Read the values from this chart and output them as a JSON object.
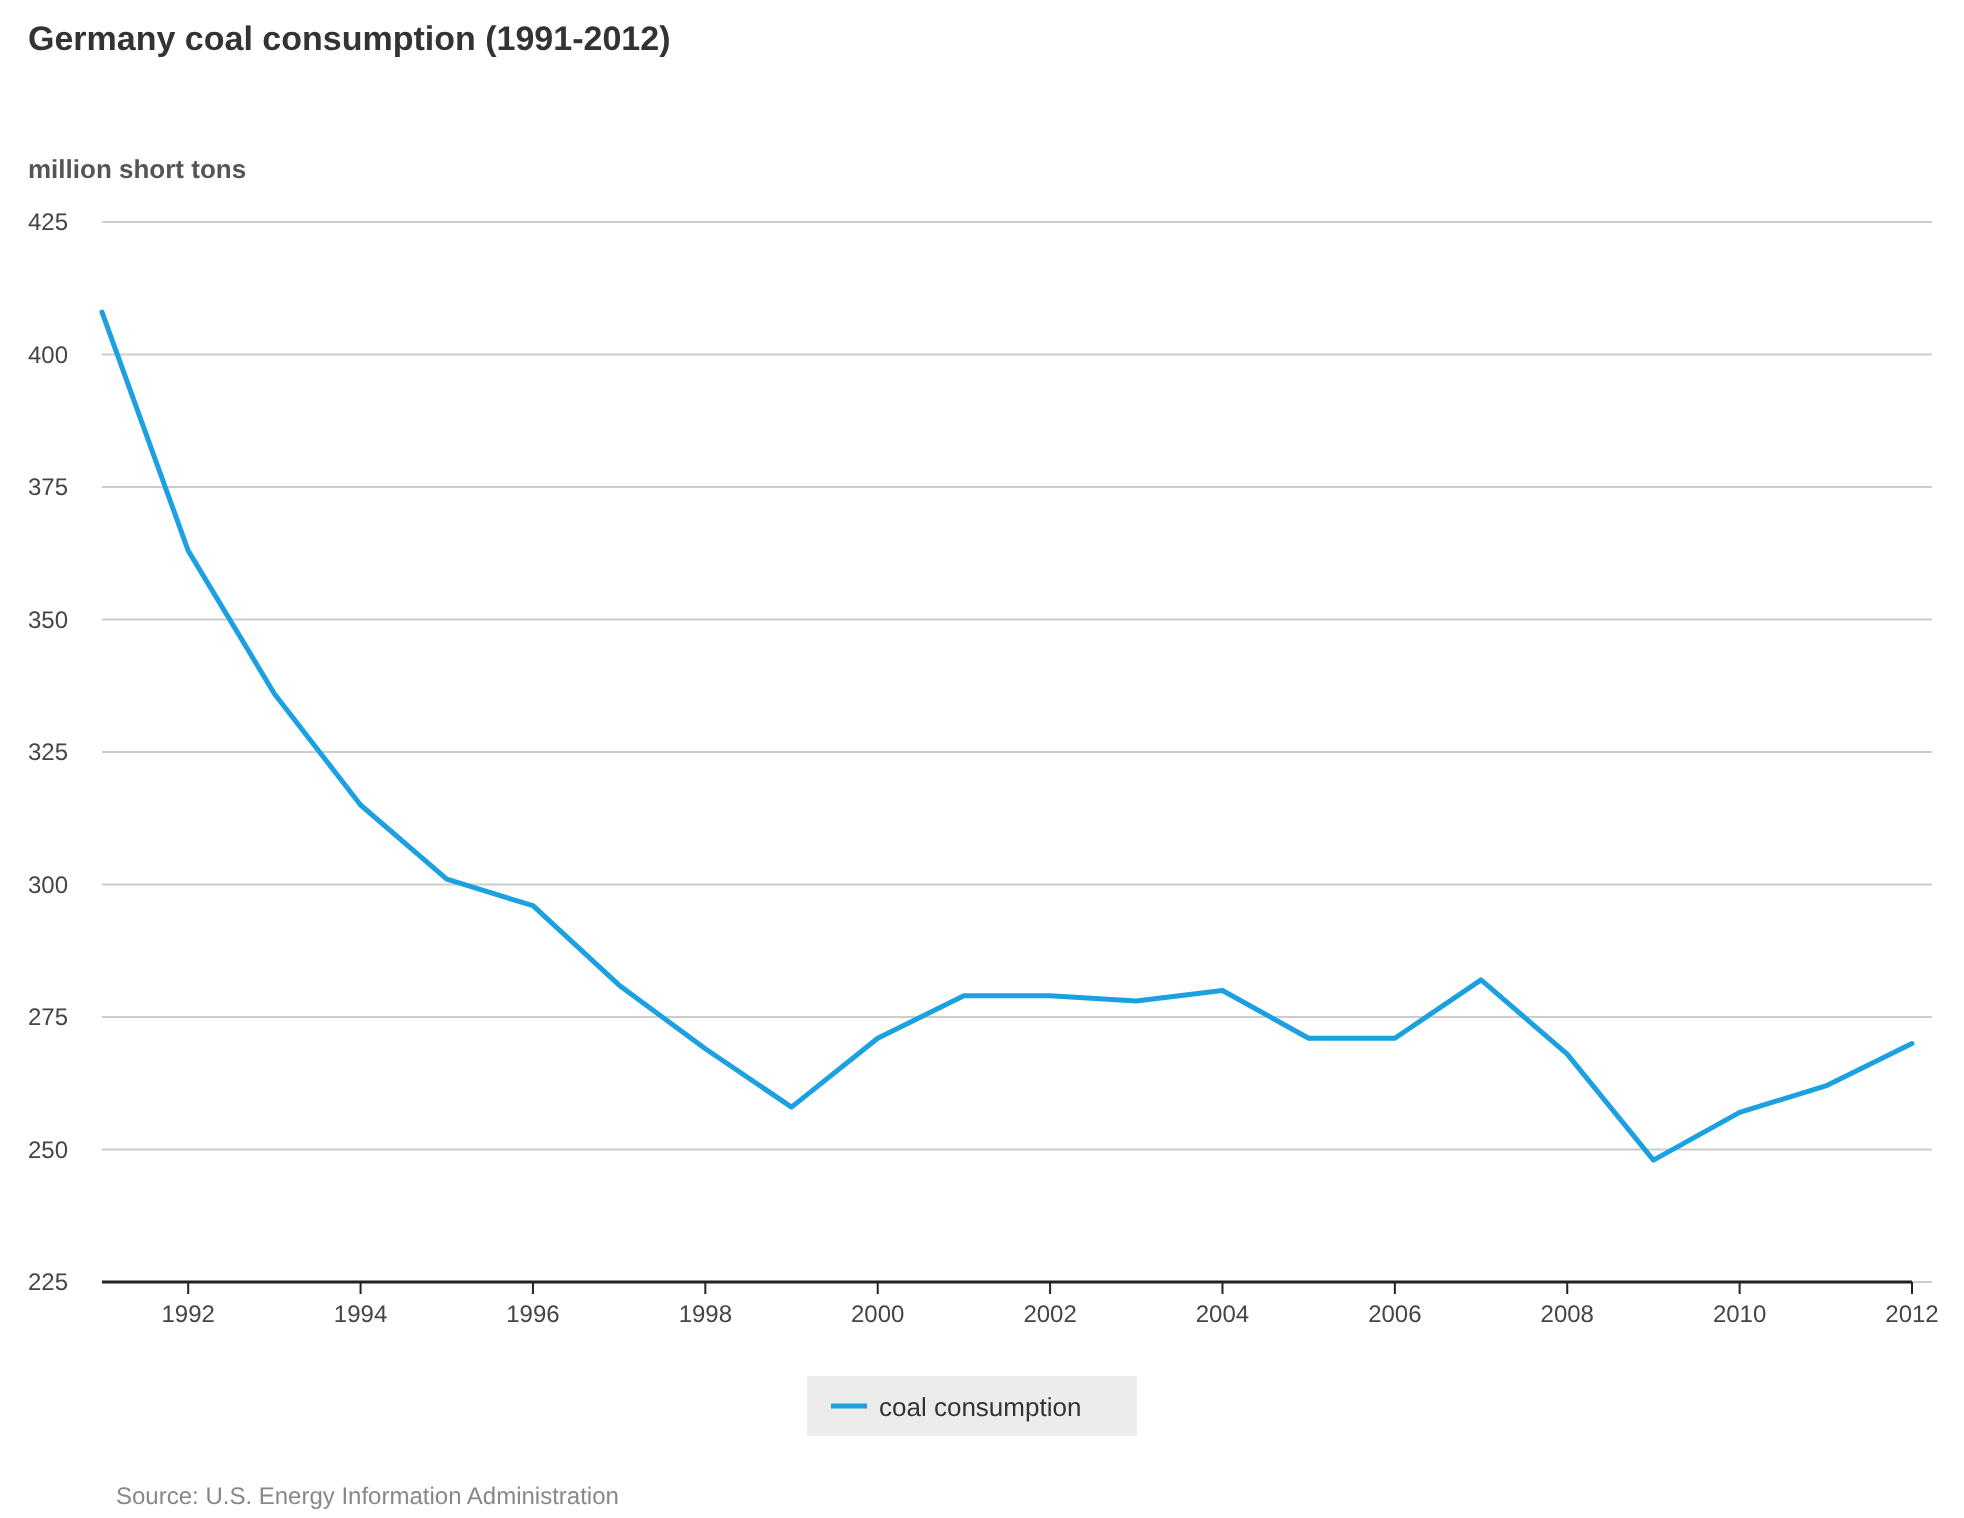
{
  "chart_data": {
    "type": "line",
    "title": "Germany coal consumption (1991-2012)",
    "ylabel": "million short tons",
    "x": [
      1991,
      1992,
      1993,
      1994,
      1995,
      1996,
      1997,
      1998,
      1999,
      2000,
      2001,
      2002,
      2003,
      2004,
      2005,
      2006,
      2007,
      2008,
      2009,
      2010,
      2011,
      2012
    ],
    "series": [
      {
        "name": "coal consumption",
        "color": "#1ba1e2",
        "values": [
          408,
          363,
          336,
          315,
          301,
          296,
          281,
          269,
          258,
          271,
          279,
          279,
          278,
          280,
          271,
          271,
          282,
          268,
          248,
          257,
          262,
          270
        ]
      }
    ],
    "xlim": [
      1991,
      2012
    ],
    "xticks": [
      1992,
      1994,
      1996,
      1998,
      2000,
      2002,
      2004,
      2006,
      2008,
      2010,
      2012
    ],
    "ylim": [
      225,
      425
    ],
    "yticks": [
      225,
      250,
      275,
      300,
      325,
      350,
      375,
      400,
      425
    ],
    "grid": "y",
    "legend": "bottom",
    "marker": "none",
    "line_style": "solid",
    "annotations": [
      "Source: U.S. Energy Information Administration"
    ]
  }
}
